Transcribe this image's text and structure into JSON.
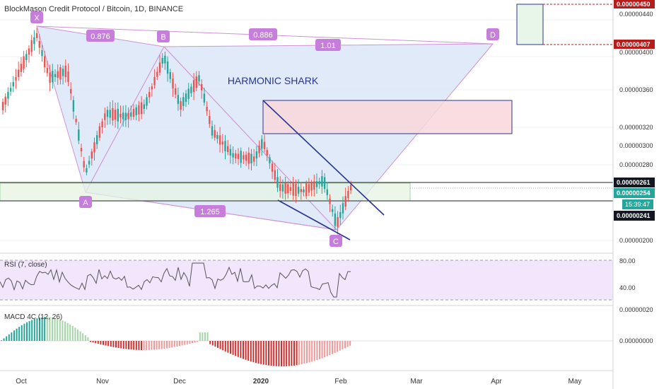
{
  "header": {
    "title": "BlockMason Credit Protocol / Bitcoin, 1D, BINANCE"
  },
  "pattern": {
    "name": "HARMONIC SHARK",
    "points": [
      "X",
      "A",
      "B",
      "C",
      "D"
    ],
    "ratios": [
      "0.876",
      "0.886",
      "1.01",
      "1.265"
    ]
  },
  "price_axis": {
    "ticks": [
      "0.00000440",
      "0.00000400",
      "0.00000360",
      "0.00000320",
      "0.00000300",
      "0.00000280",
      "0.00000200"
    ],
    "tags": {
      "target_top": "0.00000450",
      "target_bottom": "0.00000407",
      "resistance": "0.00000261",
      "current": "0.00000254",
      "countdown": "15:39:47",
      "support": "0.00000241"
    }
  },
  "rsi": {
    "label": "RSI (7, close)",
    "ticks": [
      "80.00",
      "40.00"
    ]
  },
  "macd": {
    "label": "MACD 4C (12, 26)",
    "ticks": [
      "0.00000020",
      "0.00000000"
    ]
  },
  "time_axis": {
    "labels": [
      "Oct",
      "Nov",
      "Dec",
      "2020",
      "Feb",
      "Mar",
      "Apr",
      "May"
    ]
  },
  "colors": {
    "pattern_fill": "#dce6f8",
    "pattern_line": "#ce93d8",
    "label_purple": "#c77ddb",
    "up_candle": "#26a69a",
    "down_candle": "#ef5350",
    "channel_line": "#283593",
    "rsi_band": "#f1e6fb",
    "rsi_line": "#555555",
    "macd_up_strong": "#26a69a",
    "macd_up_weak": "#a5d6a7",
    "macd_down_strong": "#d32f2f",
    "macd_down_weak": "#ef9a9a",
    "tag_dark": "#131722",
    "tag_red": "#b71c1c"
  },
  "chart_data": {
    "type": "candlestick",
    "symbol": "BlockMason Credit Protocol / Bitcoin",
    "interval": "1D",
    "exchange": "BINANCE",
    "harmonic_points": [
      {
        "label": "X",
        "date": "2019-10-08",
        "price": 4.45e-06
      },
      {
        "label": "A",
        "date": "2019-10-26",
        "price": 2.48e-06
      },
      {
        "label": "B",
        "date": "2019-11-25",
        "price": 4.05e-06
      },
      {
        "label": "C",
        "date": "2020-01-29",
        "price": 2.13e-06
      },
      {
        "label": "D",
        "date": "2020-03-31",
        "price": 4.07e-06
      }
    ],
    "ratios": {
      "XAB": 0.876,
      "ABC": 1.265,
      "BCD": 1.01,
      "XAD": 0.886
    },
    "levels": {
      "resistance": 2.61e-06,
      "current": 2.54e-06,
      "support": 2.41e-06,
      "target_top": 4.5e-06,
      "target_bottom": 4.07e-06
    },
    "y_range": [
      1.9e-06,
      4.6e-06
    ],
    "rsi_levels": [
      80,
      40
    ]
  }
}
